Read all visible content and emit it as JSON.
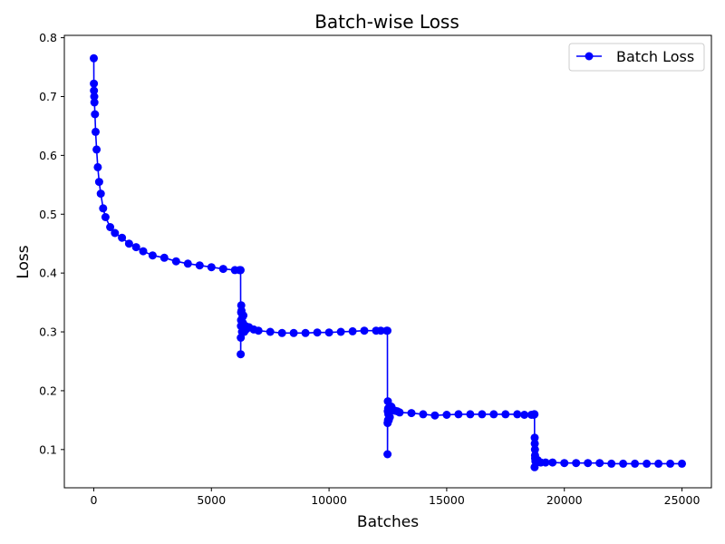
{
  "chart_data": {
    "type": "line",
    "title": "Batch-wise Loss",
    "xlabel": "Batches",
    "ylabel": "Loss",
    "xlim": [
      -1250,
      26250
    ],
    "ylim": [
      0.035,
      0.804
    ],
    "xticks": [
      0,
      5000,
      10000,
      15000,
      20000,
      25000
    ],
    "yticks": [
      0.1,
      0.2,
      0.3,
      0.4,
      0.5,
      0.6,
      0.7,
      0.8
    ],
    "xtick_labels": [
      "0",
      "5000",
      "10000",
      "15000",
      "20000",
      "25000"
    ],
    "ytick_labels": [
      "0.1",
      "0.2",
      "0.3",
      "0.4",
      "0.5",
      "0.6",
      "0.7",
      "0.8"
    ],
    "legend": {
      "position": "upper-right",
      "entries": [
        "Batch Loss"
      ]
    },
    "grid": false,
    "colors": {
      "series": "#0000ff"
    },
    "series": [
      {
        "name": "Batch Loss",
        "marker": "circle",
        "x": [
          0,
          5,
          10,
          20,
          30,
          50,
          80,
          120,
          170,
          230,
          300,
          400,
          500,
          700,
          900,
          1200,
          1500,
          1800,
          2100,
          2500,
          3000,
          3500,
          4000,
          4500,
          5000,
          5500,
          6000,
          6200,
          6240,
          6245,
          6250,
          6255,
          6260,
          6265,
          6270,
          6280,
          6290,
          6300,
          6320,
          6340,
          6360,
          6380,
          6400,
          6450,
          6500,
          6600,
          6800,
          7000,
          7500,
          8000,
          8500,
          9000,
          9500,
          10000,
          10500,
          11000,
          11500,
          12000,
          12200,
          12450,
          12480,
          12485,
          12490,
          12495,
          12500,
          12505,
          12510,
          12520,
          12540,
          12560,
          12580,
          12600,
          12650,
          12700,
          12800,
          12900,
          13000,
          13500,
          14000,
          14500,
          15000,
          15500,
          16000,
          16500,
          17000,
          17500,
          18000,
          18300,
          18600,
          18700,
          18720,
          18730,
          18735,
          18740,
          18745,
          18750,
          18755,
          18760,
          18770,
          18780,
          18800,
          18830,
          18870,
          18920,
          19000,
          19200,
          19500,
          20000,
          20500,
          21000,
          21500,
          22000,
          22500,
          23000,
          23500,
          24000,
          24500,
          25000
        ],
        "y": [
          0.765,
          0.722,
          0.71,
          0.7,
          0.69,
          0.67,
          0.64,
          0.61,
          0.58,
          0.555,
          0.535,
          0.51,
          0.495,
          0.478,
          0.468,
          0.46,
          0.45,
          0.444,
          0.437,
          0.43,
          0.426,
          0.42,
          0.416,
          0.413,
          0.41,
          0.407,
          0.405,
          0.405,
          0.405,
          0.262,
          0.29,
          0.31,
          0.32,
          0.333,
          0.345,
          0.336,
          0.312,
          0.3,
          0.325,
          0.315,
          0.328,
          0.31,
          0.3,
          0.31,
          0.305,
          0.308,
          0.304,
          0.302,
          0.3,
          0.298,
          0.298,
          0.298,
          0.299,
          0.299,
          0.3,
          0.301,
          0.302,
          0.302,
          0.302,
          0.302,
          0.302,
          0.092,
          0.145,
          0.165,
          0.182,
          0.15,
          0.17,
          0.16,
          0.15,
          0.168,
          0.155,
          0.165,
          0.173,
          0.168,
          0.166,
          0.165,
          0.163,
          0.162,
          0.16,
          0.158,
          0.159,
          0.16,
          0.16,
          0.16,
          0.16,
          0.16,
          0.16,
          0.159,
          0.159,
          0.159,
          0.16,
          0.16,
          0.07,
          0.12,
          0.11,
          0.1,
          0.09,
          0.085,
          0.08,
          0.083,
          0.079,
          0.078,
          0.082,
          0.079,
          0.078,
          0.078,
          0.078,
          0.077,
          0.077,
          0.077,
          0.077,
          0.076,
          0.076,
          0.076,
          0.076,
          0.076,
          0.076,
          0.076
        ]
      }
    ]
  }
}
